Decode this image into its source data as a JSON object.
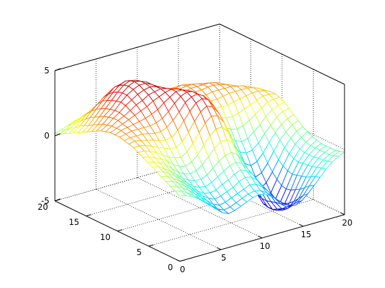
{
  "chart_data": {
    "type": "surface",
    "title": "",
    "xlabel": "",
    "ylabel": "",
    "zlabel": "",
    "xlim": [
      0,
      20
    ],
    "ylim": [
      0,
      20
    ],
    "zlim": [
      -5,
      5
    ],
    "x_ticks": [
      "0",
      "5",
      "10",
      "15",
      "20"
    ],
    "y_ticks": [
      "0",
      "5",
      "10",
      "15",
      "20"
    ],
    "z_ticks": [
      "-5",
      "0",
      "5"
    ],
    "grid": true,
    "colormap": "jet",
    "grid_resolution": [
      28,
      28
    ],
    "z_values": [
      [
        0.0,
        -0.1,
        -0.3,
        -0.6,
        -1.0,
        -1.4,
        -1.8,
        -2.2,
        -2.4,
        -2.3,
        -2.1,
        -1.9,
        -1.7,
        -1.6,
        -1.7,
        -2.0,
        -2.4,
        -2.8,
        -3.1,
        -3.2,
        -3.0,
        -2.6,
        -2.1,
        -1.6,
        -1.1,
        -0.7,
        -0.4,
        -0.2
      ],
      [
        0.2,
        0.1,
        -0.2,
        -0.5,
        -0.9,
        -1.3,
        -1.7,
        -2.1,
        -2.3,
        -2.2,
        -2.0,
        -1.8,
        -1.6,
        -1.5,
        -1.6,
        -1.9,
        -2.3,
        -2.8,
        -3.2,
        -3.4,
        -3.3,
        -2.9,
        -2.3,
        -1.7,
        -1.2,
        -0.8,
        -0.5,
        -0.3
      ],
      [
        0.4,
        0.3,
        0.0,
        -0.3,
        -0.7,
        -1.1,
        -1.5,
        -1.9,
        -2.1,
        -2.0,
        -1.8,
        -1.6,
        -1.4,
        -1.2,
        -1.3,
        -1.6,
        -2.1,
        -2.7,
        -3.3,
        -3.7,
        -3.7,
        -3.3,
        -2.6,
        -1.9,
        -1.3,
        -0.9,
        -0.6,
        -0.4
      ],
      [
        0.6,
        0.5,
        0.2,
        -0.1,
        -0.5,
        -0.9,
        -1.3,
        -1.6,
        -1.8,
        -1.7,
        -1.5,
        -1.3,
        -1.0,
        -0.8,
        -0.9,
        -1.3,
        -1.9,
        -2.6,
        -3.4,
        -4.0,
        -4.1,
        -3.7,
        -2.9,
        -2.1,
        -1.4,
        -0.9,
        -0.6,
        -0.4
      ],
      [
        0.8,
        0.7,
        0.4,
        0.1,
        -0.3,
        -0.7,
        -1.1,
        -1.4,
        -1.5,
        -1.4,
        -1.1,
        -0.9,
        -0.6,
        -0.4,
        -0.6,
        -1.0,
        -1.7,
        -2.6,
        -3.5,
        -4.2,
        -4.4,
        -4.0,
        -3.1,
        -2.2,
        -1.5,
        -1.0,
        -0.6,
        -0.4
      ],
      [
        1.0,
        0.9,
        0.6,
        0.3,
        -0.1,
        -0.5,
        -0.9,
        -1.1,
        -1.2,
        -1.0,
        -0.7,
        -0.4,
        -0.1,
        0.0,
        -0.2,
        -0.8,
        -1.6,
        -2.6,
        -3.6,
        -4.4,
        -4.6,
        -4.2,
        -3.3,
        -2.3,
        -1.5,
        -1.0,
        -0.6,
        -0.4
      ],
      [
        1.2,
        1.1,
        0.8,
        0.5,
        0.1,
        -0.3,
        -0.6,
        -0.8,
        -0.8,
        -0.6,
        -0.2,
        0.2,
        0.5,
        0.6,
        0.3,
        -0.4,
        -1.4,
        -2.5,
        -3.6,
        -4.4,
        -4.7,
        -4.3,
        -3.4,
        -2.4,
        -1.6,
        -1.0,
        -0.6,
        -0.3
      ],
      [
        1.4,
        1.3,
        1.1,
        0.8,
        0.4,
        0.0,
        -0.3,
        -0.4,
        -0.3,
        0.0,
        0.5,
        1.0,
        1.4,
        1.4,
        1.0,
        0.1,
        -1.0,
        -2.2,
        -3.4,
        -4.3,
        -4.6,
        -4.2,
        -3.3,
        -2.3,
        -1.5,
        -0.9,
        -0.5,
        -0.2
      ],
      [
        1.6,
        1.5,
        1.3,
        1.1,
        0.8,
        0.4,
        0.1,
        0.0,
        0.2,
        0.6,
        1.2,
        1.8,
        2.2,
        2.2,
        1.7,
        0.7,
        -0.5,
        -1.8,
        -3.0,
        -3.9,
        -4.2,
        -3.9,
        -3.0,
        -2.1,
        -1.3,
        -0.7,
        -0.3,
        0.0
      ],
      [
        1.8,
        1.8,
        1.6,
        1.4,
        1.1,
        0.8,
        0.6,
        0.5,
        0.8,
        1.3,
        2.0,
        2.6,
        3.0,
        2.9,
        2.3,
        1.3,
        0.0,
        -1.3,
        -2.5,
        -3.3,
        -3.6,
        -3.3,
        -2.6,
        -1.8,
        -1.0,
        -0.4,
        0.0,
        0.2
      ],
      [
        2.0,
        2.0,
        1.9,
        1.7,
        1.5,
        1.3,
        1.1,
        1.1,
        1.4,
        2.0,
        2.7,
        3.3,
        3.6,
        3.4,
        2.8,
        1.8,
        0.5,
        -0.8,
        -1.9,
        -2.6,
        -2.9,
        -2.7,
        -2.1,
        -1.3,
        -0.6,
        -0.1,
        0.3,
        0.5
      ],
      [
        2.1,
        2.2,
        2.1,
        2.0,
        1.9,
        1.7,
        1.6,
        1.7,
        2.1,
        2.7,
        3.3,
        3.8,
        4.0,
        3.8,
        3.1,
        2.1,
        0.9,
        -0.3,
        -1.3,
        -1.9,
        -2.2,
        -2.0,
        -1.5,
        -0.8,
        -0.2,
        0.3,
        0.6,
        0.8
      ],
      [
        2.2,
        2.3,
        2.3,
        2.3,
        2.2,
        2.1,
        2.1,
        2.3,
        2.7,
        3.2,
        3.8,
        4.1,
        4.2,
        3.9,
        3.2,
        2.3,
        1.2,
        0.2,
        -0.7,
        -1.2,
        -1.4,
        -1.3,
        -0.9,
        -0.3,
        0.2,
        0.7,
        1.0,
        1.1
      ],
      [
        2.3,
        2.4,
        2.5,
        2.5,
        2.5,
        2.5,
        2.6,
        2.8,
        3.2,
        3.7,
        4.1,
        4.3,
        4.2,
        3.8,
        3.1,
        2.3,
        1.4,
        0.6,
        -0.1,
        -0.5,
        -0.7,
        -0.6,
        -0.2,
        0.2,
        0.7,
        1.1,
        1.3,
        1.4
      ],
      [
        2.3,
        2.5,
        2.6,
        2.7,
        2.8,
        2.9,
        3.1,
        3.3,
        3.7,
        4.0,
        4.3,
        4.3,
        4.1,
        3.6,
        3.0,
        2.3,
        1.6,
        1.0,
        0.5,
        0.2,
        0.1,
        0.2,
        0.5,
        0.8,
        1.2,
        1.5,
        1.6,
        1.6
      ],
      [
        2.3,
        2.5,
        2.7,
        2.9,
        3.1,
        3.3,
        3.5,
        3.8,
        4.0,
        4.2,
        4.3,
        4.2,
        3.9,
        3.4,
        2.9,
        2.3,
        1.8,
        1.4,
        1.1,
        0.9,
        0.9,
        1.0,
        1.2,
        1.4,
        1.6,
        1.8,
        1.8,
        1.7
      ],
      [
        2.2,
        2.5,
        2.8,
        3.0,
        3.3,
        3.6,
        3.8,
        4.1,
        4.2,
        4.3,
        4.2,
        4.0,
        3.6,
        3.2,
        2.8,
        2.4,
        2.0,
        1.8,
        1.6,
        1.6,
        1.6,
        1.7,
        1.8,
        1.9,
        2.0,
        2.0,
        1.9,
        1.7
      ],
      [
        2.1,
        2.4,
        2.8,
        3.1,
        3.5,
        3.8,
        4.1,
        4.3,
        4.4,
        4.3,
        4.1,
        3.8,
        3.4,
        3.0,
        2.7,
        2.4,
        2.2,
        2.1,
        2.0,
        2.0,
        2.1,
        2.2,
        2.2,
        2.2,
        2.2,
        2.1,
        1.9,
        1.6
      ],
      [
        1.9,
        2.3,
        2.7,
        3.1,
        3.6,
        4.0,
        4.3,
        4.5,
        4.5,
        4.3,
        4.0,
        3.6,
        3.2,
        2.9,
        2.6,
        2.4,
        2.3,
        2.3,
        2.3,
        2.4,
        2.4,
        2.4,
        2.4,
        2.3,
        2.2,
        2.0,
        1.7,
        1.4
      ],
      [
        1.7,
        2.1,
        2.6,
        3.0,
        3.5,
        4.0,
        4.4,
        4.6,
        4.5,
        4.3,
        3.9,
        3.5,
        3.1,
        2.8,
        2.6,
        2.5,
        2.4,
        2.5,
        2.5,
        2.6,
        2.6,
        2.5,
        2.4,
        2.2,
        2.0,
        1.7,
        1.4,
        1.1
      ],
      [
        1.5,
        1.9,
        2.4,
        2.9,
        3.4,
        3.9,
        4.3,
        4.5,
        4.4,
        4.1,
        3.7,
        3.3,
        2.9,
        2.7,
        2.5,
        2.5,
        2.5,
        2.6,
        2.6,
        2.6,
        2.6,
        2.5,
        2.3,
        2.0,
        1.7,
        1.4,
        1.1,
        0.8
      ],
      [
        1.3,
        1.7,
        2.2,
        2.7,
        3.2,
        3.7,
        4.1,
        4.3,
        4.2,
        3.9,
        3.5,
        3.1,
        2.8,
        2.6,
        2.5,
        2.5,
        2.5,
        2.6,
        2.6,
        2.5,
        2.4,
        2.2,
        2.0,
        1.7,
        1.4,
        1.1,
        0.8,
        0.5
      ],
      [
        1.1,
        1.5,
        2.0,
        2.5,
        3.0,
        3.4,
        3.8,
        3.9,
        3.8,
        3.6,
        3.2,
        2.9,
        2.6,
        2.5,
        2.4,
        2.4,
        2.4,
        2.5,
        2.4,
        2.3,
        2.1,
        1.9,
        1.7,
        1.4,
        1.1,
        0.8,
        0.5,
        0.3
      ],
      [
        0.9,
        1.3,
        1.7,
        2.2,
        2.6,
        3.0,
        3.3,
        3.4,
        3.3,
        3.1,
        2.8,
        2.6,
        2.4,
        2.3,
        2.2,
        2.2,
        2.2,
        2.2,
        2.1,
        2.0,
        1.8,
        1.6,
        1.4,
        1.1,
        0.9,
        0.6,
        0.4,
        0.2
      ],
      [
        0.7,
        1.0,
        1.4,
        1.8,
        2.1,
        2.4,
        2.7,
        2.8,
        2.7,
        2.6,
        2.4,
        2.2,
        2.1,
        2.0,
        1.9,
        1.9,
        1.9,
        1.9,
        1.8,
        1.7,
        1.5,
        1.3,
        1.1,
        0.9,
        0.7,
        0.5,
        0.3,
        0.1
      ],
      [
        0.5,
        0.8,
        1.1,
        1.4,
        1.6,
        1.9,
        2.1,
        2.2,
        2.2,
        2.1,
        2.0,
        1.9,
        1.8,
        1.7,
        1.6,
        1.6,
        1.6,
        1.6,
        1.5,
        1.4,
        1.2,
        1.1,
        0.9,
        0.7,
        0.5,
        0.4,
        0.2,
        0.1
      ],
      [
        0.3,
        0.5,
        0.8,
        1.0,
        1.2,
        1.4,
        1.6,
        1.7,
        1.7,
        1.7,
        1.6,
        1.5,
        1.4,
        1.4,
        1.3,
        1.3,
        1.3,
        1.3,
        1.2,
        1.1,
        1.0,
        0.9,
        0.7,
        0.6,
        0.4,
        0.3,
        0.2,
        0.0
      ],
      [
        0.2,
        0.3,
        0.5,
        0.7,
        0.8,
        1.0,
        1.1,
        1.2,
        1.2,
        1.2,
        1.2,
        1.1,
        1.1,
        1.0,
        1.0,
        1.0,
        1.0,
        1.0,
        0.9,
        0.9,
        0.8,
        0.7,
        0.6,
        0.4,
        0.3,
        0.2,
        0.1,
        0.0
      ]
    ]
  }
}
